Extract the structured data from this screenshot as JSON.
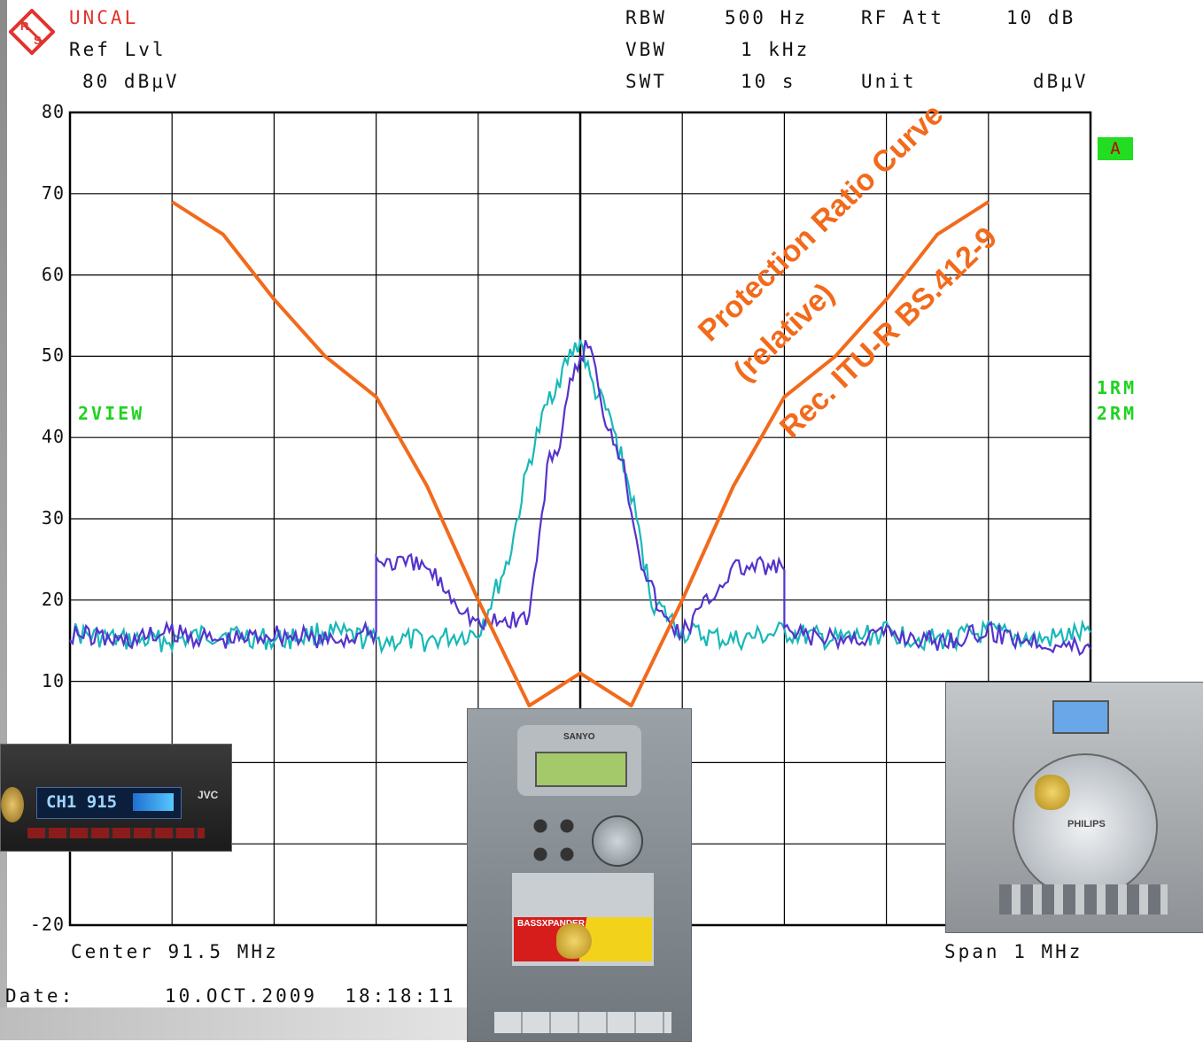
{
  "header": {
    "status": "UNCAL",
    "ref_label": "Ref Lvl",
    "ref_value": "80 dBμV",
    "rbw_label": "RBW",
    "rbw_value": "500 Hz",
    "vbw_label": "VBW",
    "vbw_value": "1 kHz",
    "swt_label": "SWT",
    "swt_value": "10 s",
    "rfatt_label": "RF Att",
    "rfatt_value": "10 dB",
    "unit_label": "Unit",
    "unit_value": "dBμV"
  },
  "side_labels": {
    "trace_mode": "2VIEW",
    "trace1": "1RM",
    "trace2": "2RM",
    "marker": "A"
  },
  "footer": {
    "center": "Center 91.5 MHz",
    "span": "Span 1 MHz",
    "date_label": "Date:",
    "date_value": "10.OCT.2009  18:18:11"
  },
  "annotations": {
    "line1": "Protection Ratio Curve",
    "line2": "(relative)",
    "line3": "Rec. ITU-R BS.412-9"
  },
  "photos": {
    "car_radio_display": "CH1 915",
    "car_radio_brand": "JVC",
    "stereo_brand": "SANYO",
    "stereo_sticker": "BASSXPANDER",
    "minisystem_brand": "PHILIPS"
  },
  "colors": {
    "trace1": "#5533cc",
    "trace2": "#19b8b8",
    "protection_curve": "#f26a1b",
    "grid": "#000000",
    "side_label": "#1fd21f"
  },
  "chart_data": {
    "type": "line",
    "xlabel": "",
    "ylabel": "",
    "x_center_label": "Center 91.5 MHz",
    "x_span_label": "Span 1 MHz",
    "xlim": [
      91.0,
      92.0
    ],
    "ylim": [
      -20,
      80
    ],
    "yticks": [
      80,
      70,
      60,
      50,
      40,
      30,
      20,
      10,
      -20
    ],
    "grid": true,
    "series": [
      {
        "name": "1RM",
        "x": [
          91.0,
          91.05,
          91.1,
          91.15,
          91.2,
          91.25,
          91.3,
          91.3,
          91.35,
          91.4,
          91.45,
          91.47,
          91.48,
          91.49,
          91.5,
          91.51,
          91.52,
          91.54,
          91.56,
          91.58,
          91.6,
          91.65,
          91.7,
          91.7,
          91.75,
          91.8,
          91.85,
          91.9,
          91.95,
          92.0
        ],
        "y": [
          16,
          15,
          16,
          15,
          16,
          15,
          16,
          25,
          24,
          17,
          18,
          38,
          39,
          46,
          50,
          52,
          44,
          38,
          25,
          18,
          16,
          24,
          24,
          16,
          15,
          16,
          15,
          16,
          15,
          14
        ]
      },
      {
        "name": "2RM",
        "x": [
          91.0,
          91.05,
          91.1,
          91.15,
          91.2,
          91.25,
          91.3,
          91.35,
          91.4,
          91.43,
          91.45,
          91.47,
          91.49,
          91.5,
          91.51,
          91.53,
          91.55,
          91.57,
          91.6,
          91.65,
          91.7,
          91.75,
          91.8,
          91.85,
          91.9,
          91.95,
          92.0
        ],
        "y": [
          16,
          15,
          15,
          16,
          15,
          16,
          15,
          15,
          16,
          25,
          37,
          45,
          50,
          52,
          47,
          42,
          33,
          20,
          16,
          15,
          16,
          15,
          16,
          15,
          16,
          15,
          16
        ]
      },
      {
        "name": "",
        "x": [
          91.1,
          91.15,
          91.2,
          91.25,
          91.3,
          91.35,
          91.4,
          91.45,
          91.5,
          91.55,
          91.6,
          91.65,
          91.7,
          91.75,
          91.8,
          91.85,
          91.9
        ],
        "y": [
          69,
          65,
          57,
          50,
          45,
          34,
          20,
          7,
          11,
          7,
          20,
          34,
          45,
          50,
          57,
          65,
          69
        ]
      }
    ]
  }
}
